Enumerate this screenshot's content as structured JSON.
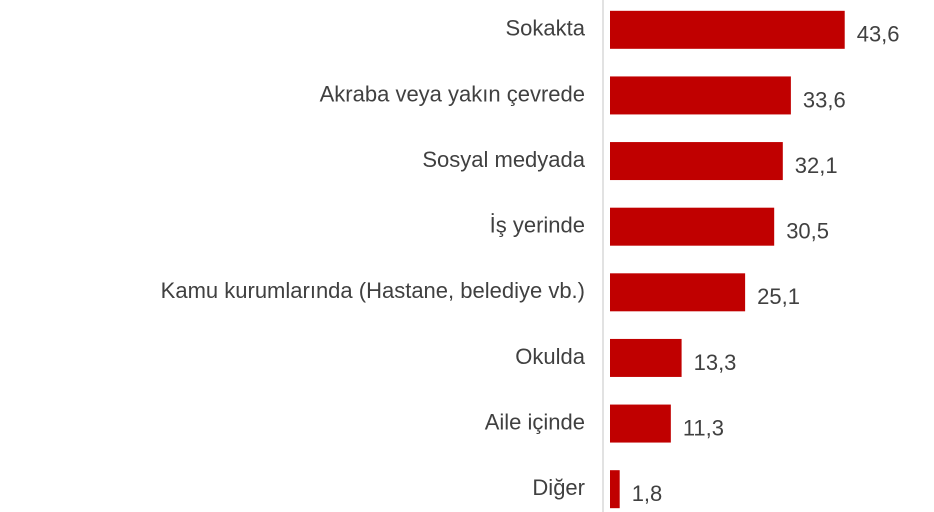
{
  "chart_data": {
    "type": "barh",
    "categories": [
      "Sokakta",
      "Akraba veya yakın çevrede",
      "Sosyal medyada",
      "İş yerinde",
      "Kamu kurumlarında (Hastane, belediye vb.)",
      "Okulda",
      "Aile içinde",
      "Diğer"
    ],
    "values": [
      43.6,
      33.6,
      32.1,
      30.5,
      25.1,
      13.3,
      11.3,
      1.8
    ],
    "value_labels": [
      "43,6",
      "33,6",
      "32,1",
      "30,5",
      "25,1",
      "13,3",
      "11,3",
      "1,8"
    ],
    "color": "#c00000",
    "xlim": [
      0,
      60
    ]
  }
}
